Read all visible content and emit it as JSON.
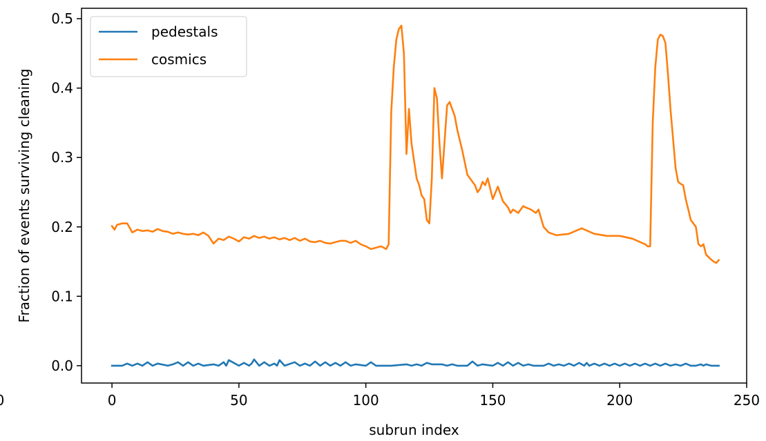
{
  "chart_data": {
    "type": "line",
    "title": "",
    "xlabel": "subrun index",
    "ylabel": "Fraction of events surviving cleaning",
    "xlim": [
      -12,
      250
    ],
    "ylim": [
      -0.025,
      0.515
    ],
    "xticks": [
      0,
      50,
      100,
      150,
      200,
      250
    ],
    "xtick_labels": [
      "0",
      "50",
      "100",
      "150",
      "200",
      "250"
    ],
    "yticks": [
      0.0,
      0.1,
      0.2,
      0.3,
      0.4,
      0.5
    ],
    "ytick_labels": [
      "0.0",
      "0.1",
      "0.2",
      "0.3",
      "0.4",
      "0.5"
    ],
    "clipped_left_label": "0",
    "grid": false,
    "legend_position": "top-left",
    "series": [
      {
        "name": "pedestals",
        "color": "#1f77b4",
        "x": [
          0,
          4,
          6,
          8,
          10,
          12,
          14,
          16,
          18,
          22,
          24,
          26,
          28,
          30,
          32,
          34,
          36,
          40,
          42,
          44,
          45,
          46,
          50,
          52,
          54,
          55,
          56,
          58,
          60,
          62,
          64,
          65,
          66,
          68,
          72,
          74,
          76,
          78,
          80,
          82,
          84,
          86,
          88,
          90,
          92,
          94,
          96,
          100,
          102,
          104,
          110,
          116,
          118,
          120,
          122,
          124,
          126,
          130,
          132,
          134,
          136,
          140,
          142,
          144,
          146,
          150,
          152,
          154,
          156,
          158,
          160,
          162,
          164,
          166,
          170,
          172,
          174,
          176,
          178,
          180,
          182,
          184,
          186,
          187,
          188,
          190,
          192,
          194,
          196,
          198,
          200,
          202,
          204,
          206,
          208,
          210,
          212,
          214,
          216,
          218,
          220,
          222,
          224,
          226,
          228,
          230,
          232,
          233,
          234,
          236,
          239
        ],
        "values": [
          0.0,
          0.0,
          0.003,
          0.0,
          0.003,
          0.0,
          0.005,
          0.0,
          0.003,
          0.0,
          0.002,
          0.005,
          0.0,
          0.005,
          0.0,
          0.003,
          0.0,
          0.002,
          0.0,
          0.005,
          0.0,
          0.008,
          0.0,
          0.004,
          0.0,
          0.003,
          0.009,
          0.0,
          0.005,
          0.0,
          0.003,
          0.0,
          0.008,
          0.0,
          0.005,
          0.0,
          0.003,
          0.0,
          0.006,
          0.0,
          0.005,
          0.0,
          0.004,
          0.0,
          0.005,
          0.0,
          0.002,
          0.0,
          0.005,
          0.0,
          0.0,
          0.002,
          0.0,
          0.002,
          0.0,
          0.004,
          0.002,
          0.002,
          0.0,
          0.002,
          0.0,
          0.0,
          0.006,
          0.0,
          0.002,
          0.0,
          0.004,
          0.0,
          0.005,
          0.0,
          0.004,
          0.0,
          0.002,
          0.0,
          0.0,
          0.003,
          0.0,
          0.002,
          0.0,
          0.003,
          0.0,
          0.004,
          0.0,
          0.004,
          0.0,
          0.003,
          0.0,
          0.003,
          0.0,
          0.003,
          0.0,
          0.003,
          0.0,
          0.003,
          0.0,
          0.003,
          0.0,
          0.003,
          0.0,
          0.003,
          0.0,
          0.002,
          0.0,
          0.003,
          0.0,
          0.0,
          0.002,
          0.0,
          0.002,
          0.0,
          0.0
        ]
      },
      {
        "name": "cosmics",
        "color": "#ff7f0e",
        "x": [
          0,
          1,
          2,
          4,
          6,
          8,
          10,
          12,
          14,
          16,
          18,
          20,
          22,
          24,
          26,
          28,
          30,
          32,
          34,
          36,
          38,
          40,
          42,
          44,
          46,
          48,
          50,
          52,
          54,
          56,
          58,
          60,
          62,
          64,
          66,
          68,
          70,
          72,
          74,
          76,
          78,
          80,
          82,
          84,
          86,
          88,
          90,
          92,
          94,
          96,
          98,
          100,
          102,
          104,
          106,
          107,
          108,
          109,
          110,
          111,
          112,
          113,
          114,
          115,
          116,
          117,
          118,
          120,
          121,
          122,
          123,
          124,
          125,
          126,
          127,
          128,
          129,
          130,
          132,
          133,
          134,
          135,
          136,
          138,
          140,
          142,
          143,
          144,
          145,
          146,
          147,
          148,
          149,
          150,
          152,
          154,
          156,
          157,
          158,
          160,
          162,
          163,
          165,
          167,
          168,
          170,
          172,
          175,
          180,
          185,
          190,
          195,
          200,
          205,
          210,
          211,
          212,
          213,
          214,
          215,
          216,
          217,
          218,
          219,
          220,
          222,
          223,
          224,
          225,
          226,
          227,
          228,
          229,
          230,
          231,
          232,
          233,
          234,
          236,
          237,
          238,
          239
        ],
        "values": [
          0.201,
          0.196,
          0.203,
          0.205,
          0.205,
          0.192,
          0.196,
          0.194,
          0.195,
          0.193,
          0.197,
          0.194,
          0.193,
          0.19,
          0.192,
          0.19,
          0.189,
          0.19,
          0.188,
          0.192,
          0.187,
          0.176,
          0.183,
          0.181,
          0.186,
          0.183,
          0.179,
          0.185,
          0.183,
          0.187,
          0.184,
          0.186,
          0.183,
          0.185,
          0.182,
          0.184,
          0.181,
          0.184,
          0.18,
          0.183,
          0.179,
          0.178,
          0.18,
          0.177,
          0.176,
          0.178,
          0.18,
          0.18,
          0.177,
          0.18,
          0.175,
          0.172,
          0.168,
          0.17,
          0.172,
          0.17,
          0.168,
          0.175,
          0.365,
          0.43,
          0.47,
          0.485,
          0.49,
          0.45,
          0.305,
          0.37,
          0.32,
          0.27,
          0.26,
          0.245,
          0.24,
          0.21,
          0.205,
          0.27,
          0.4,
          0.385,
          0.32,
          0.27,
          0.375,
          0.38,
          0.37,
          0.36,
          0.34,
          0.31,
          0.275,
          0.265,
          0.26,
          0.25,
          0.255,
          0.265,
          0.26,
          0.27,
          0.255,
          0.24,
          0.258,
          0.237,
          0.228,
          0.22,
          0.225,
          0.22,
          0.23,
          0.228,
          0.225,
          0.22,
          0.225,
          0.2,
          0.192,
          0.188,
          0.19,
          0.198,
          0.19,
          0.187,
          0.187,
          0.183,
          0.175,
          0.172,
          0.172,
          0.35,
          0.43,
          0.47,
          0.477,
          0.475,
          0.465,
          0.42,
          0.37,
          0.285,
          0.265,
          0.262,
          0.26,
          0.24,
          0.225,
          0.21,
          0.205,
          0.2,
          0.175,
          0.172,
          0.175,
          0.16,
          0.153,
          0.15,
          0.148,
          0.152
        ]
      }
    ]
  }
}
